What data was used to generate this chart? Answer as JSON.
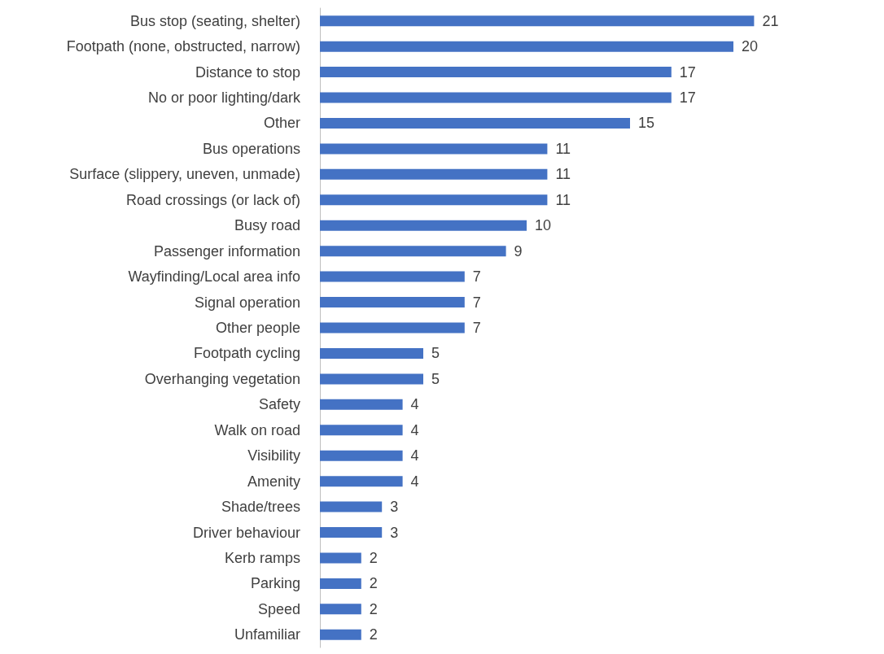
{
  "chart_data": {
    "type": "bar",
    "orientation": "horizontal",
    "categories": [
      "Bus stop (seating, shelter)",
      "Footpath (none, obstructed, narrow)",
      "Distance to stop",
      "No or poor lighting/dark",
      "Other",
      "Bus operations",
      "Surface (slippery, uneven, unmade)",
      "Road crossings (or lack of)",
      "Busy road",
      "Passenger information",
      "Wayfinding/Local area info",
      "Signal operation",
      "Other people",
      "Footpath cycling",
      "Overhanging vegetation",
      "Safety",
      "Walk on road",
      "Visibility",
      "Amenity",
      "Shade/trees",
      "Driver behaviour",
      "Kerb ramps",
      "Parking",
      "Speed",
      "Unfamiliar"
    ],
    "values": [
      21,
      20,
      17,
      17,
      15,
      11,
      11,
      11,
      10,
      9,
      7,
      7,
      7,
      5,
      5,
      4,
      4,
      4,
      4,
      3,
      3,
      2,
      2,
      2,
      2
    ],
    "color": "#4472c4",
    "data_labels": true
  }
}
